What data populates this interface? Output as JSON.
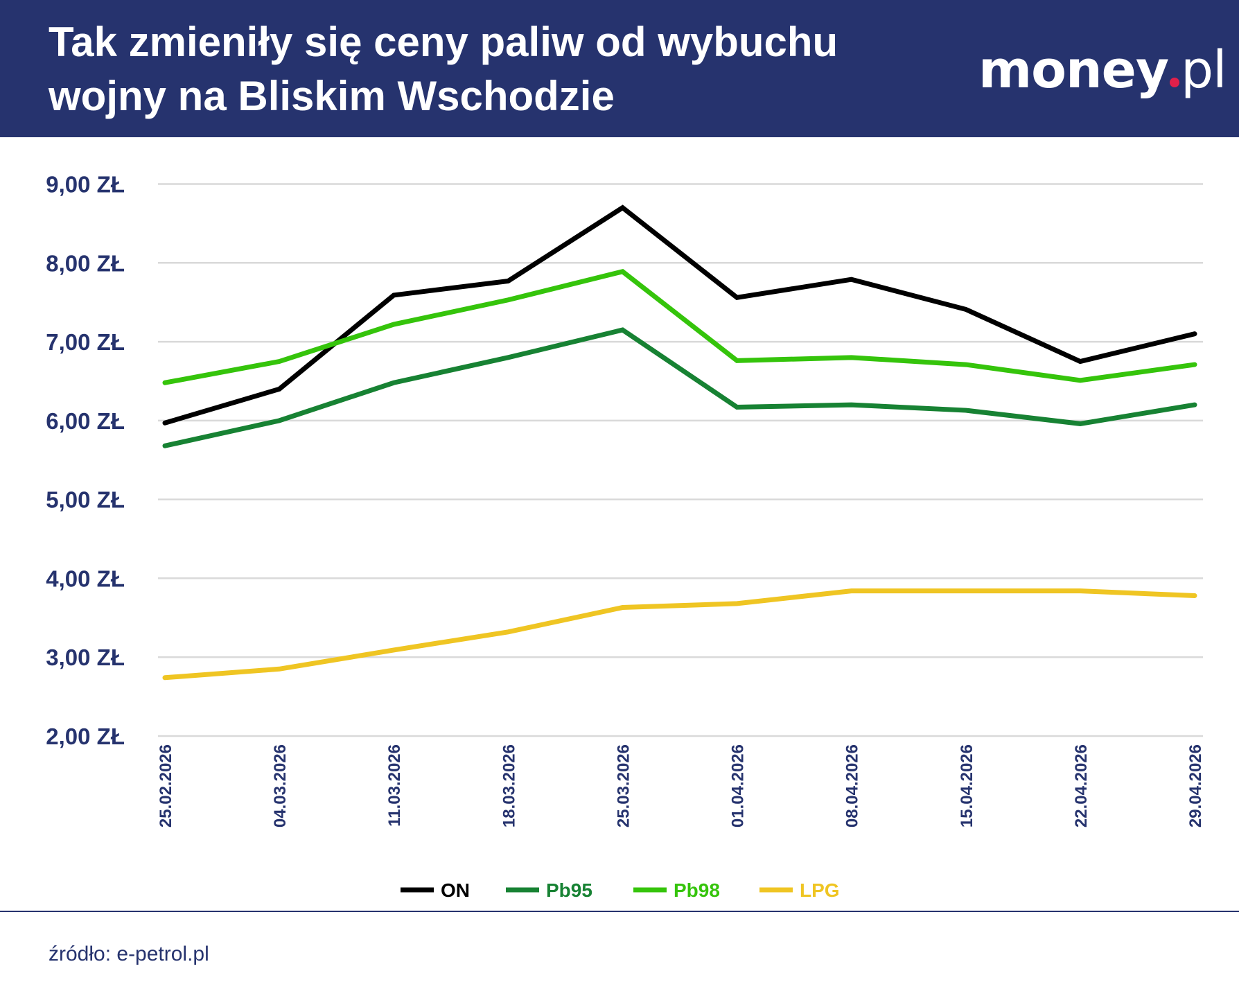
{
  "header": {
    "title": "Tak zmieniły się ceny paliw od wybuchu wojny na Bliskim Wschodzie",
    "logo": "money.pl"
  },
  "footer": {
    "source": "źródło: e-petrol.pl"
  },
  "colors": {
    "header_bg": "#26336e",
    "ON": "#000000",
    "Pb95": "#178233",
    "Pb98": "#35c40b",
    "LPG": "#efc523",
    "logo_dot": "#e0204a"
  },
  "chart_data": {
    "type": "line",
    "title": "Tak zmieniły się ceny paliw od wybuchu wojny na Bliskim Wschodzie",
    "x": [
      "25.02.2026",
      "04.03.2026",
      "11.03.2026",
      "18.03.2026",
      "25.03.2026",
      "01.04.2026",
      "08.04.2026",
      "15.04.2026",
      "22.04.2026",
      "29.04.2026"
    ],
    "yticks": [
      "2,00 ZŁ",
      "3,00 ZŁ",
      "4,00 ZŁ",
      "5,00 ZŁ",
      "6,00 ZŁ",
      "7,00 ZŁ",
      "8,00 ZŁ",
      "9,00 ZŁ"
    ],
    "ylim": [
      2,
      9
    ],
    "grid": true,
    "legend_position": "bottom",
    "series": [
      {
        "name": "ON",
        "color": "#000000",
        "values": [
          5.97,
          6.4,
          7.59,
          7.77,
          8.7,
          7.56,
          7.79,
          7.41,
          6.75,
          7.1
        ]
      },
      {
        "name": "Pb95",
        "color": "#178233",
        "values": [
          5.68,
          6.0,
          6.48,
          6.8,
          7.15,
          6.17,
          6.2,
          6.13,
          5.96,
          6.2
        ]
      },
      {
        "name": "Pb98",
        "color": "#35c40b",
        "values": [
          6.48,
          6.75,
          7.22,
          7.53,
          7.89,
          6.76,
          6.8,
          6.71,
          6.51,
          6.71
        ]
      },
      {
        "name": "LPG",
        "color": "#efc523",
        "values": [
          2.74,
          2.85,
          3.09,
          3.32,
          3.63,
          3.68,
          3.84,
          3.84,
          3.84,
          3.78
        ]
      }
    ]
  }
}
